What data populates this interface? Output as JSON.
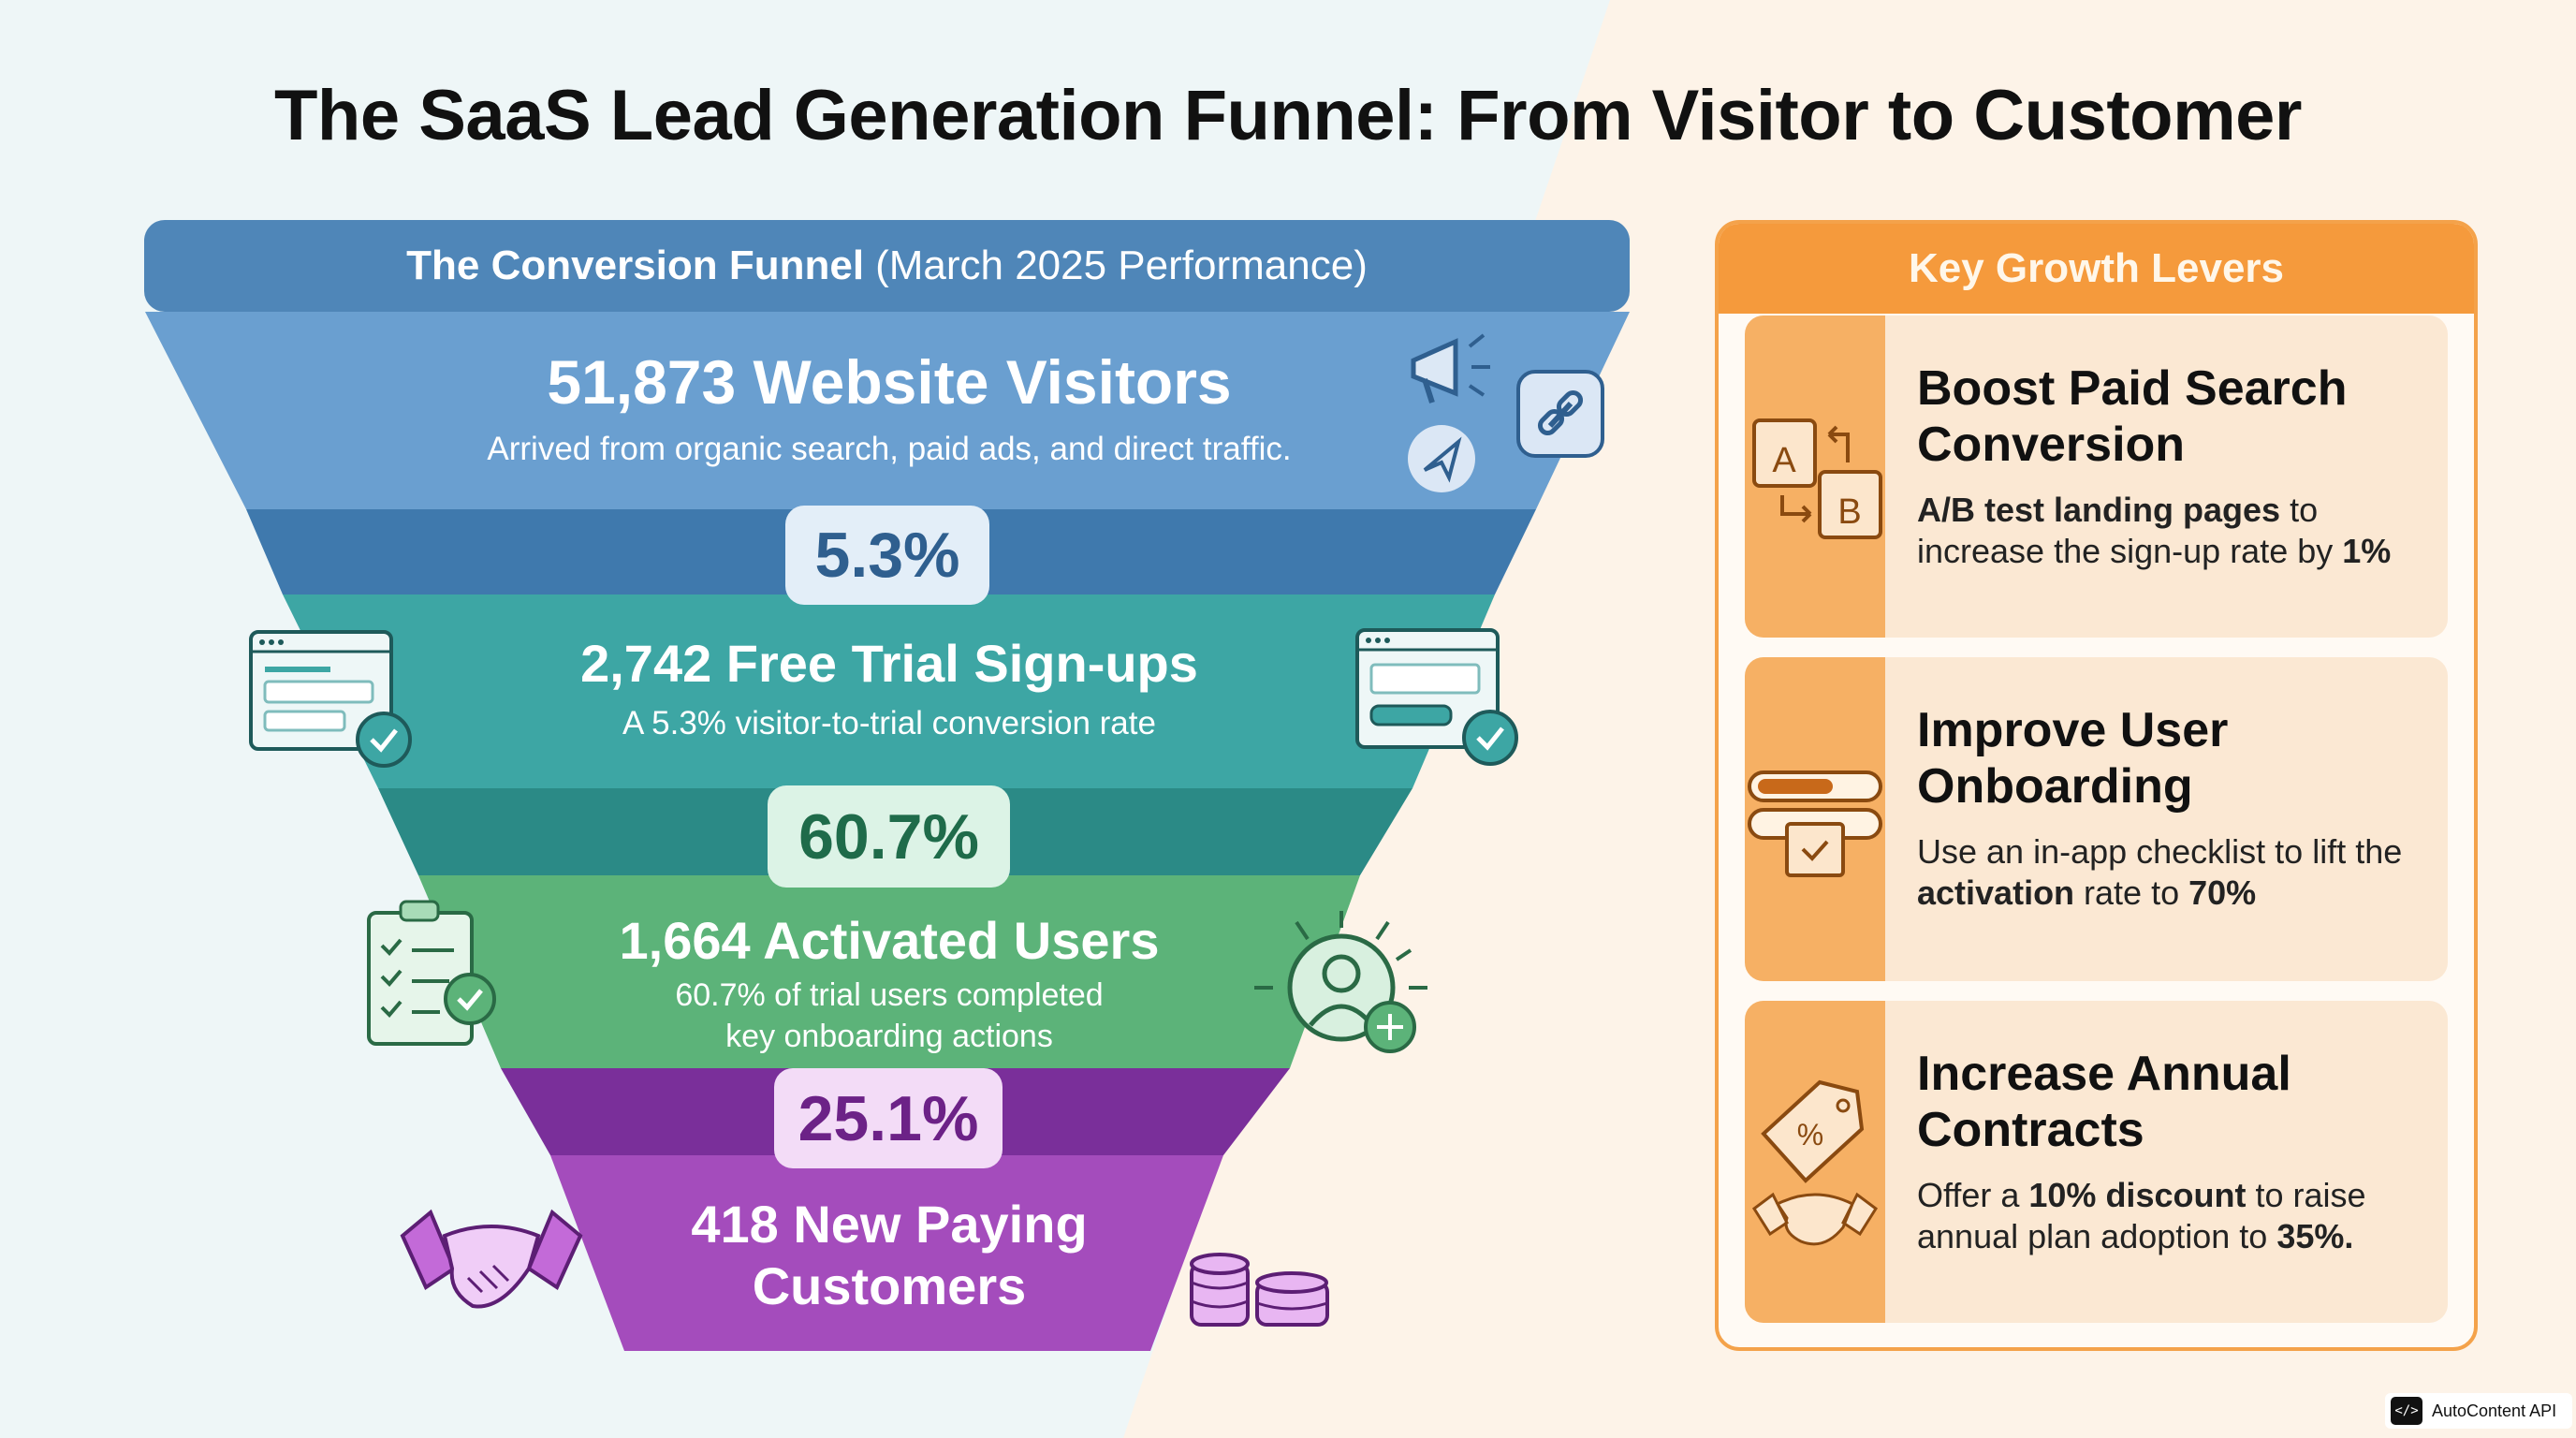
{
  "title": "The SaaS Lead Generation Funnel: From Visitor to Customer",
  "colors": {
    "stage1": "#6a9fd0",
    "stage2": "#3da6a4",
    "stage3": "#5cb379",
    "stage4": "#a44cbc",
    "header": "#4f86b8",
    "accent": "#f59a3c"
  },
  "funnel": {
    "header_bold": "The Conversion Funnel",
    "header_rest": "(March 2025 Performance)",
    "stages": [
      {
        "title": "51,873 Website Visitors",
        "subtitle": "Arrived from organic search, paid ads, and direct traffic.",
        "icons": [
          "megaphone-icon",
          "link-icon",
          "paper-plane-icon"
        ]
      },
      {
        "title": "2,742 Free Trial Sign-ups",
        "subtitle": "A 5.3% visitor-to-trial conversion rate",
        "icons": [
          "signup-form-icon",
          "signup-form-icon"
        ]
      },
      {
        "title": "1,664 Activated Users",
        "subtitle_line1": "60.7% of trial users completed",
        "subtitle_line2": "key onboarding actions",
        "icons": [
          "checklist-icon",
          "activated-user-icon"
        ]
      },
      {
        "title_line1": "418 New Paying",
        "title_line2": "Customers",
        "icons": [
          "handshake-icon",
          "coins-icon"
        ]
      }
    ],
    "rates": [
      "5.3%",
      "60.7%",
      "25.1%"
    ]
  },
  "levers": {
    "header": "Key Growth Levers",
    "items": [
      {
        "title_line1": "Boost Paid Search",
        "title_line2": "Conversion",
        "body_bold": "A/B test landing pages",
        "body_rest": " to increase the sign-up rate by ",
        "body_end": "1%",
        "icon": "ab-test-icon"
      },
      {
        "title_line1": "Improve User",
        "title_line2": "Onboarding",
        "body_pre": "Use an in-app checklist to lift the ",
        "body_bold": "activation",
        "body_mid": " rate to ",
        "body_end": "70%",
        "icon": "onboarding-checklist-icon"
      },
      {
        "title_line1": "Increase Annual",
        "title_line2": "Contracts",
        "body_pre": "Offer a ",
        "body_bold": "10% discount",
        "body_mid": " to raise annual plan adoption to ",
        "body_end": "35%.",
        "icon": "discount-tag-icon"
      }
    ]
  },
  "watermark": {
    "logo": "</>",
    "text": "AutoContent API"
  }
}
